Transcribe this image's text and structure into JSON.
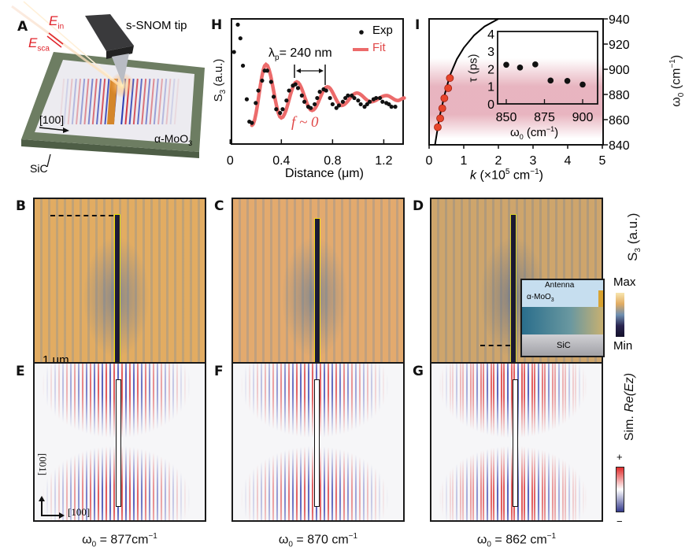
{
  "panels": {
    "a": {
      "label": "A",
      "e_in": {
        "main": "E",
        "sub": "in"
      },
      "e_sca": {
        "main": "E",
        "sub": "sca"
      },
      "tip": "s-SNOM tip",
      "direction": "[100]",
      "material": "α-MoO",
      "material_sub": "3",
      "substrate": "SiC"
    },
    "h": {
      "label": "H"
    },
    "i": {
      "label": "I"
    },
    "b": {
      "label": "B",
      "scale_bar": "1 μm"
    },
    "c": {
      "label": "C"
    },
    "d": {
      "label": "D",
      "inset": {
        "antenna": "Antenna",
        "material": "α-MoO",
        "material_sub": "3",
        "substrate": "SiC"
      }
    },
    "e": {
      "label": "E",
      "axis_vertical": "[001]",
      "axis_horizontal": "[100]",
      "caption": {
        "omega": "ω",
        "sub": "0",
        "value": " = 877cm",
        "sup": "−1"
      }
    },
    "f": {
      "label": "F",
      "caption": {
        "omega": "ω",
        "sub": "0",
        "value": " = 870 cm",
        "sup": "−1"
      }
    },
    "g": {
      "label": "G",
      "caption": {
        "omega": "ω",
        "sub": "0",
        "value": " = 862 cm",
        "sup": "−1"
      }
    }
  },
  "colorbars": {
    "exp": {
      "label_main": "S",
      "label_sub": "3",
      "label_unit": " (a.u.)",
      "max": "Max",
      "min": "Min",
      "colors": [
        "#f8e6b0",
        "#e2ac62",
        "#6f8fb0",
        "#2a2550",
        "#14102a"
      ]
    },
    "sim": {
      "label_prefix": "Sim. ",
      "label_italic": "Re(Ez)",
      "plus": "+",
      "minus": "−",
      "colors": [
        "#e02c2c",
        "#ffffff",
        "#343a8c"
      ]
    }
  },
  "chart_data": [
    {
      "type": "scatter",
      "panel": "H",
      "xlabel": "Distance (μm)",
      "ylabel_main": "S",
      "ylabel_sub": "3",
      "ylabel_unit": " (a.u.)",
      "xlim": [
        0,
        1.36
      ],
      "ylim": [
        0,
        1
      ],
      "xticks": [
        "0",
        "0.4",
        "0.8",
        "1.2"
      ],
      "xtick_values": [
        0,
        0.4,
        0.8,
        1.2
      ],
      "annotation_lambda": {
        "main": "λ",
        "sub": "p",
        "text": "= 240 nm"
      },
      "annotation_f": "f ~ 0",
      "series": [
        {
          "name": "Exp",
          "kind": "points",
          "color": "#111111",
          "x": [
            0.03,
            0.06,
            0.08,
            0.1,
            0.13,
            0.15,
            0.17,
            0.2,
            0.22,
            0.25,
            0.27,
            0.29,
            0.32,
            0.34,
            0.36,
            0.39,
            0.41,
            0.44,
            0.46,
            0.49,
            0.51,
            0.53,
            0.56,
            0.58,
            0.61,
            0.63,
            0.66,
            0.68,
            0.7,
            0.73,
            0.75,
            0.78,
            0.8,
            0.83,
            0.85,
            0.88,
            0.9,
            0.92,
            0.95,
            0.97,
            1.0,
            1.02,
            1.05,
            1.07,
            1.09,
            1.12,
            1.14,
            1.17,
            1.19,
            1.22,
            1.24,
            1.26,
            1.29
          ],
          "y": [
            0.74,
            0.96,
            0.85,
            0.63,
            0.36,
            0.18,
            0.17,
            0.33,
            0.43,
            0.51,
            0.59,
            0.59,
            0.5,
            0.38,
            0.28,
            0.25,
            0.28,
            0.35,
            0.43,
            0.47,
            0.48,
            0.45,
            0.39,
            0.34,
            0.3,
            0.29,
            0.32,
            0.37,
            0.42,
            0.44,
            0.43,
            0.37,
            0.32,
            0.29,
            0.31,
            0.34,
            0.37,
            0.39,
            0.39,
            0.37,
            0.35,
            0.32,
            0.3,
            0.32,
            0.34,
            0.36,
            0.37,
            0.37,
            0.34,
            0.33,
            0.32,
            0.3,
            0.3
          ]
        },
        {
          "name": "Fit",
          "kind": "line",
          "color": "#ec6b6b",
          "x": [
            0.17,
            0.28,
            0.4,
            0.52,
            0.64,
            0.76,
            0.87,
            0.99,
            1.1,
            1.22,
            1.31,
            1.36
          ],
          "y": [
            0.15,
            0.64,
            0.21,
            0.5,
            0.27,
            0.46,
            0.31,
            0.41,
            0.34,
            0.39,
            0.35,
            0.37
          ]
        }
      ]
    },
    {
      "type": "line",
      "panel": "I",
      "xlabel": {
        "italic": "k",
        "text": " (×10",
        "sup": "5",
        "unit": " cm",
        "unit_sup": "−1",
        "close": ")"
      },
      "ylabel": {
        "omega": "ω",
        "sub": "0",
        "text": " (cm",
        "sup": "−1",
        "close": ")"
      },
      "xlim": [
        0,
        5
      ],
      "ylim": [
        840,
        940
      ],
      "xticks": [
        "0",
        "1",
        "2",
        "3",
        "4",
        "5"
      ],
      "yticks": [
        "840",
        "860",
        "880",
        "900",
        "920",
        "940"
      ],
      "band_color": "#e2a2b0",
      "series": [
        {
          "kind": "line",
          "color": "#000000",
          "x": [
            0.17,
            0.3,
            0.45,
            0.6,
            0.8,
            1.0,
            1.3,
            1.6,
            2.0
          ],
          "y": [
            840,
            862,
            880,
            895,
            908,
            917,
            927,
            934,
            940
          ]
        },
        {
          "kind": "points",
          "color": "#e8452c",
          "x": [
            0.25,
            0.32,
            0.38,
            0.44,
            0.55,
            0.6
          ],
          "y": [
            854,
            861,
            869,
            877,
            885,
            893
          ]
        }
      ],
      "inset": {
        "type": "scatter",
        "xlabel": {
          "omega": "ω",
          "sub": "0",
          "text": " (cm",
          "sup": "−1",
          "close": ")"
        },
        "ylabel": "τ (ps)",
        "xlim": [
          843,
          908
        ],
        "ylim": [
          0,
          4
        ],
        "xticks": [
          "850",
          "875",
          "900"
        ],
        "yticks": [
          "0",
          "1",
          "2",
          "3",
          "4"
        ],
        "x": [
          850,
          859,
          869,
          879,
          890,
          900
        ],
        "y": [
          2.23,
          2.07,
          2.25,
          1.33,
          1.31,
          1.1
        ]
      }
    }
  ]
}
